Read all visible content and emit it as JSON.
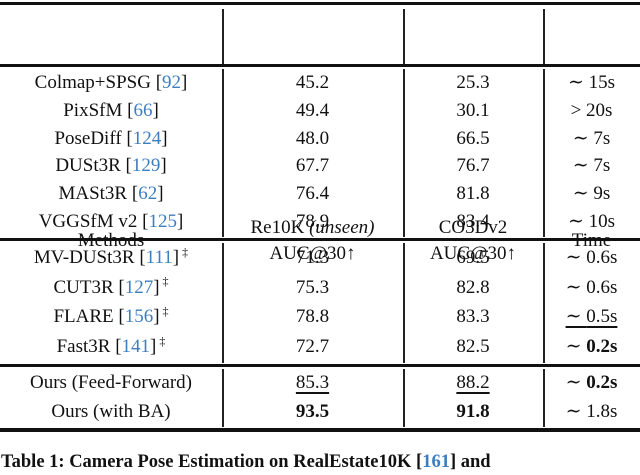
{
  "colors": {
    "citation_blue": "#3d7ec0",
    "rule_black": "#111111",
    "background": "#ffffff"
  },
  "table": {
    "header": {
      "methods": "Methods",
      "re10k_name": "Re10K",
      "re10k_note": "(unseen)",
      "re10k_metric": "AUC@30↑",
      "co3d_name": "CO3Dv2",
      "co3d_metric": "AUC@30↑",
      "time": "Time"
    },
    "sections": [
      {
        "rows": [
          {
            "method": "Colmap+SPSG",
            "cite": "92",
            "dagger": false,
            "re10k": {
              "text": "45.2",
              "style": ""
            },
            "co3d": {
              "text": "25.3",
              "style": ""
            },
            "time": {
              "prefix": "∼ ",
              "value": "15s",
              "value_bold": false,
              "style": ""
            }
          },
          {
            "method": "PixSfM",
            "cite": "66",
            "dagger": false,
            "re10k": {
              "text": "49.4",
              "style": ""
            },
            "co3d": {
              "text": "30.1",
              "style": ""
            },
            "time": {
              "prefix": "> ",
              "value": "20s",
              "value_bold": false,
              "style": ""
            }
          },
          {
            "method": "PoseDiff",
            "cite": "124",
            "dagger": false,
            "re10k": {
              "text": "48.0",
              "style": ""
            },
            "co3d": {
              "text": "66.5",
              "style": ""
            },
            "time": {
              "prefix": "∼ ",
              "value": "7s",
              "value_bold": false,
              "style": ""
            }
          },
          {
            "method": "DUSt3R",
            "cite": "129",
            "dagger": false,
            "re10k": {
              "text": "67.7",
              "style": ""
            },
            "co3d": {
              "text": "76.7",
              "style": ""
            },
            "time": {
              "prefix": "∼ ",
              "value": "7s",
              "value_bold": false,
              "style": ""
            }
          },
          {
            "method": "MASt3R",
            "cite": "62",
            "dagger": false,
            "re10k": {
              "text": "76.4",
              "style": ""
            },
            "co3d": {
              "text": "81.8",
              "style": ""
            },
            "time": {
              "prefix": "∼ ",
              "value": "9s",
              "value_bold": false,
              "style": ""
            }
          },
          {
            "method": "VGGSfM v2",
            "cite": "125",
            "dagger": false,
            "re10k": {
              "text": "78.9",
              "style": ""
            },
            "co3d": {
              "text": "83.4",
              "style": ""
            },
            "time": {
              "prefix": "∼ ",
              "value": "10s",
              "value_bold": false,
              "style": ""
            }
          }
        ]
      },
      {
        "rows": [
          {
            "method": "MV-DUSt3R",
            "cite": "111",
            "dagger": true,
            "re10k": {
              "text": "71.3",
              "style": ""
            },
            "co3d": {
              "text": "69.5",
              "style": ""
            },
            "time": {
              "prefix": "∼ ",
              "value": "0.6s",
              "value_bold": false,
              "style": ""
            }
          },
          {
            "method": "CUT3R",
            "cite": "127",
            "dagger": true,
            "re10k": {
              "text": "75.3",
              "style": ""
            },
            "co3d": {
              "text": "82.8",
              "style": ""
            },
            "time": {
              "prefix": "∼ ",
              "value": "0.6s",
              "value_bold": false,
              "style": ""
            }
          },
          {
            "method": "FLARE",
            "cite": "156",
            "dagger": true,
            "re10k": {
              "text": "78.8",
              "style": ""
            },
            "co3d": {
              "text": "83.3",
              "style": ""
            },
            "time": {
              "prefix": "∼ ",
              "value": "0.5s",
              "value_bold": false,
              "style": "underline"
            }
          },
          {
            "method": "Fast3R",
            "cite": "141",
            "dagger": true,
            "re10k": {
              "text": "72.7",
              "style": ""
            },
            "co3d": {
              "text": "82.5",
              "style": ""
            },
            "time": {
              "prefix": "∼ ",
              "value": "0.2s",
              "value_bold": true,
              "style": ""
            }
          }
        ]
      },
      {
        "rows": [
          {
            "method": "Ours (Feed-Forward)",
            "cite": "",
            "dagger": false,
            "re10k": {
              "text": "85.3",
              "style": "underline"
            },
            "co3d": {
              "text": "88.2",
              "style": "underline"
            },
            "time": {
              "prefix": "∼ ",
              "value": "0.2s",
              "value_bold": true,
              "style": ""
            }
          },
          {
            "method": "Ours (with BA)",
            "cite": "",
            "dagger": false,
            "re10k": {
              "text": "93.5",
              "style": "bold"
            },
            "co3d": {
              "text": "91.8",
              "style": "bold"
            },
            "time": {
              "prefix": "∼ ",
              "value": "1.8s",
              "value_bold": false,
              "style": ""
            }
          }
        ]
      }
    ]
  },
  "caption": {
    "part1": "Table 1: Camera Pose Estimation on RealEstate10K [",
    "cite": "161",
    "part3": "] and"
  }
}
